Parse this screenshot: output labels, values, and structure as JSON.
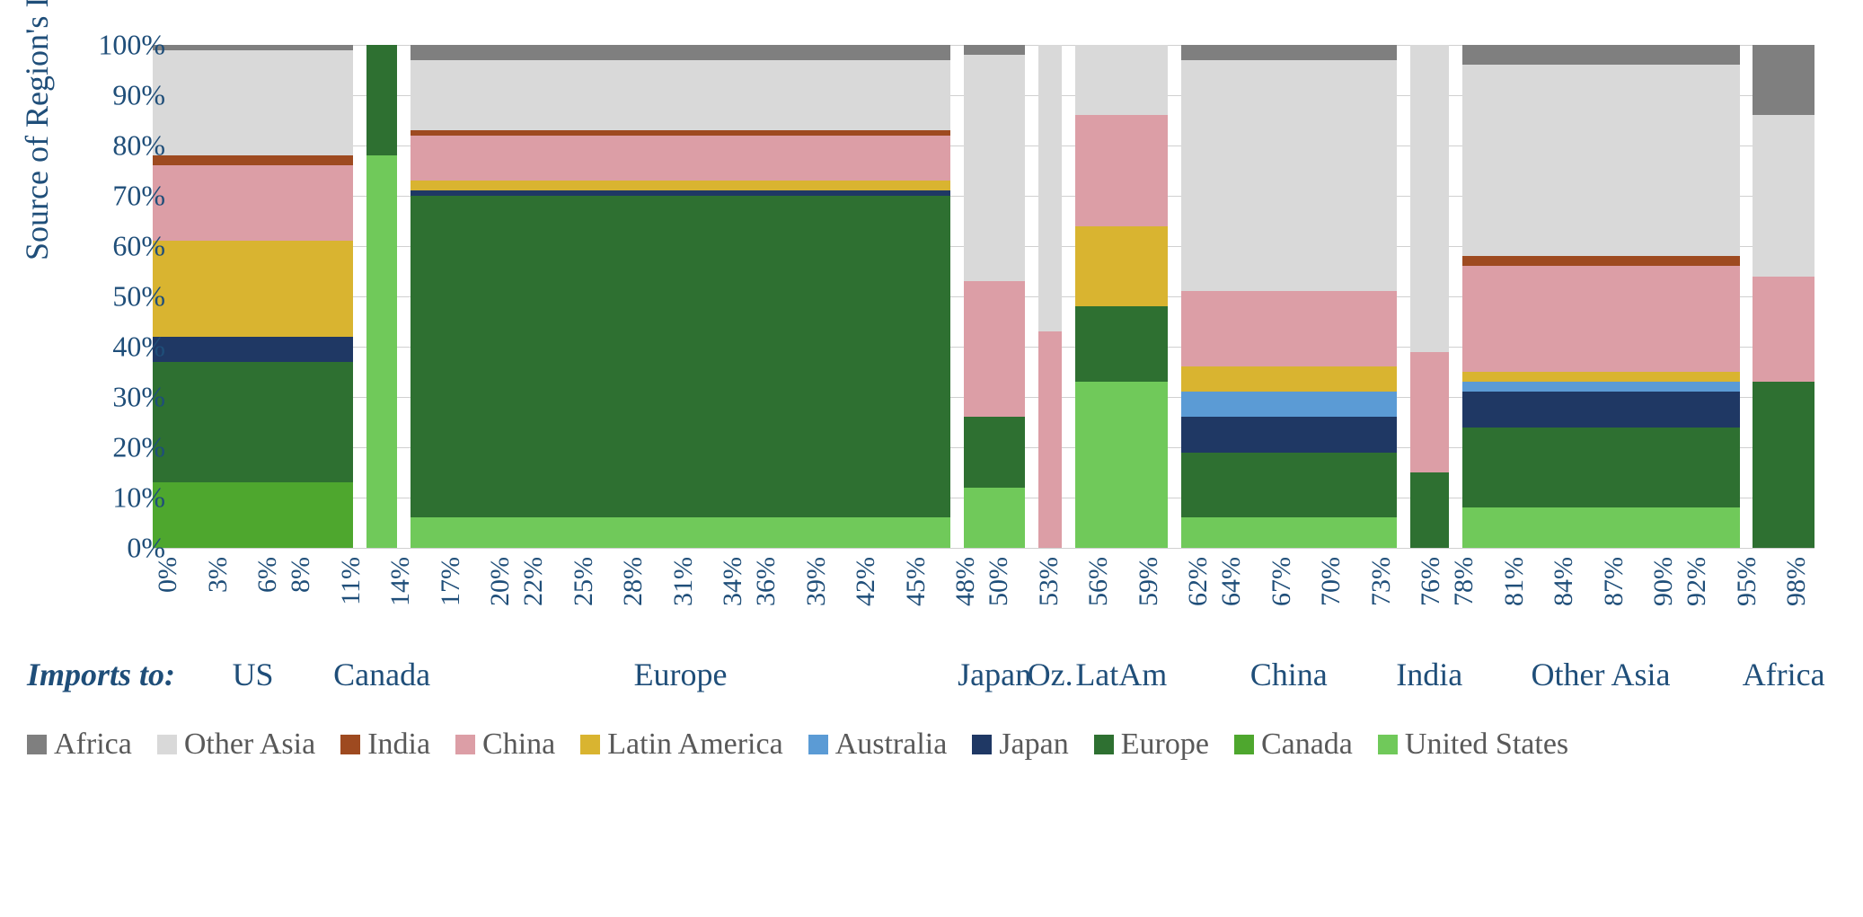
{
  "type": "marimekko",
  "y_axis": {
    "label": "Source of Region's Imports (%)",
    "min": 0,
    "max": 100,
    "ticks": [
      0,
      10,
      20,
      30,
      40,
      50,
      60,
      70,
      80,
      90,
      100
    ],
    "tick_labels": [
      "0%",
      "10%",
      "20%",
      "30%",
      "40%",
      "50%",
      "60%",
      "70%",
      "80%",
      "90%",
      "100%"
    ]
  },
  "colors": {
    "Africa": "#7f7f7f",
    "Other Asia": "#d9d9d9",
    "India": "#9e4a20",
    "China": "#dc9ea6",
    "Latin America": "#d9b430",
    "Australia": "#5b9bd5",
    "Japan": "#1f3864",
    "Europe": "#2e7031",
    "Canada": "#4ea72e",
    "United States": "#70c95a"
  },
  "text_color": "#1f4e79",
  "legend_text_color": "#595959",
  "grid_color": "#d0d0d0",
  "series_order_bottom_to_top": [
    "United States",
    "Canada",
    "Europe",
    "Japan",
    "Australia",
    "Latin America",
    "China",
    "India",
    "Other Asia",
    "Africa"
  ],
  "legend_order": [
    "Africa",
    "Other Asia",
    "India",
    "China",
    "Latin America",
    "Australia",
    "Japan",
    "Europe",
    "Canada",
    "United States"
  ],
  "gap_pct": 0.8,
  "regions": [
    {
      "name": "US",
      "width_pct": 13.0,
      "stack": {
        "United States": 0,
        "Canada": 13,
        "Europe": 24,
        "Japan": 5,
        "Australia": 0,
        "Latin America": 19,
        "China": 15,
        "India": 2,
        "Other Asia": 21,
        "Africa": 1
      }
    },
    {
      "name": "Canada",
      "width_pct": 2.0,
      "stack": {
        "United States": 78,
        "Canada": 0,
        "Europe": 22,
        "Japan": 0,
        "Australia": 0,
        "Latin America": 0,
        "China": 0,
        "India": 0,
        "Other Asia": 0,
        "Africa": 0
      }
    },
    {
      "name": "Europe",
      "width_pct": 35.0,
      "stack": {
        "United States": 6,
        "Canada": 0,
        "Europe": 64,
        "Japan": 1,
        "Australia": 0,
        "Latin America": 2,
        "China": 9,
        "India": 1,
        "Other Asia": 14,
        "Africa": 3
      }
    },
    {
      "name": "Japan",
      "width_pct": 4.0,
      "stack": {
        "United States": 12,
        "Canada": 0,
        "Europe": 14,
        "Japan": 0,
        "Australia": 0,
        "Latin America": 0,
        "China": 27,
        "India": 0,
        "Other Asia": 45,
        "Africa": 2
      }
    },
    {
      "name": "Oz.",
      "width_pct": 1.5,
      "stack": {
        "United States": 0,
        "Canada": 0,
        "Europe": 0,
        "Japan": 0,
        "Australia": 0,
        "Latin America": 0,
        "China": 43,
        "India": 0,
        "Other Asia": 57,
        "Africa": 0
      }
    },
    {
      "name": "LatAm",
      "width_pct": 6.0,
      "stack": {
        "United States": 33,
        "Canada": 0,
        "Europe": 15,
        "Japan": 0,
        "Australia": 0,
        "Latin America": 16,
        "China": 22,
        "India": 0,
        "Other Asia": 14,
        "Africa": 0
      }
    },
    {
      "name": "China",
      "width_pct": 14.0,
      "stack": {
        "United States": 6,
        "Canada": 0,
        "Europe": 13,
        "Japan": 7,
        "Australia": 5,
        "Latin America": 5,
        "China": 15,
        "India": 0,
        "Other Asia": 46,
        "Africa": 3
      }
    },
    {
      "name": "India",
      "width_pct": 2.5,
      "stack": {
        "United States": 0,
        "Canada": 0,
        "Europe": 15,
        "Japan": 0,
        "Australia": 0,
        "Latin America": 0,
        "China": 24,
        "India": 0,
        "Other Asia": 61,
        "Africa": 0
      }
    },
    {
      "name": "Other Asia",
      "width_pct": 18.0,
      "stack": {
        "United States": 8,
        "Canada": 0,
        "Europe": 16,
        "Japan": 7,
        "Australia": 2,
        "Latin America": 2,
        "China": 21,
        "India": 2,
        "Other Asia": 38,
        "Africa": 4
      }
    },
    {
      "name": "Africa",
      "width_pct": 4.0,
      "stack": {
        "United States": 0,
        "Canada": 0,
        "Europe": 33,
        "Japan": 0,
        "Australia": 0,
        "Latin America": 0,
        "China": 21,
        "India": 0,
        "Other Asia": 32,
        "Africa": 14
      }
    }
  ],
  "x_ticks": [
    "0%",
    "3%",
    "6%",
    "8%",
    "11%",
    "14%",
    "17%",
    "20%",
    "22%",
    "25%",
    "28%",
    "31%",
    "34%",
    "36%",
    "39%",
    "42%",
    "45%",
    "48%",
    "50%",
    "53%",
    "56%",
    "59%",
    "62%",
    "64%",
    "67%",
    "70%",
    "73%",
    "76%",
    "78%",
    "81%",
    "84%",
    "87%",
    "90%",
    "92%",
    "95%",
    "98%"
  ],
  "x_tick_positions_pct": [
    0,
    3,
    6,
    8,
    11,
    14,
    17,
    20,
    22,
    25,
    28,
    31,
    34,
    36,
    39,
    42,
    45,
    48,
    50,
    53,
    56,
    59,
    62,
    64,
    67,
    70,
    73,
    76,
    78,
    81,
    84,
    87,
    90,
    92,
    95,
    98
  ],
  "imports_to_label": "Imports to:",
  "fontsize": {
    "axis_label": 36,
    "tick": 32,
    "x_tick": 30,
    "region": 36,
    "legend": 34
  }
}
